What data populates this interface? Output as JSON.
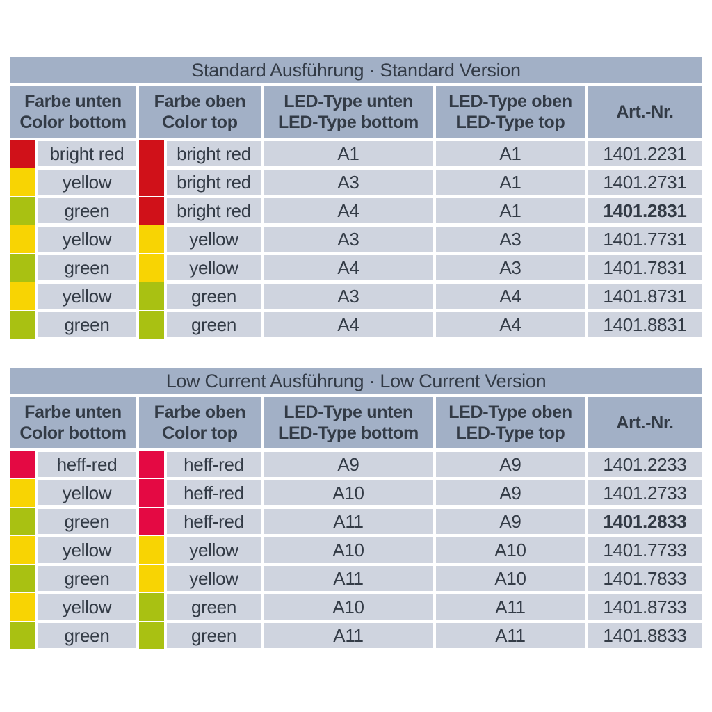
{
  "colors": {
    "background": "#ffffff",
    "band_header": "#a2b0c6",
    "band_row": "#cfd4df",
    "text": "#333b46",
    "swatches": {
      "bright-red": "#d01119",
      "yellow": "#f8d403",
      "green": "#a9c112",
      "heff-red": "#e40943"
    }
  },
  "tables": [
    {
      "title": "Standard Ausführung · Standard Version",
      "columns": [
        {
          "line1": "Farbe unten",
          "line2": "Color bottom"
        },
        {
          "line1": "Farbe oben",
          "line2": "Color top"
        },
        {
          "line1": "LED-Type unten",
          "line2": "LED-Type bottom"
        },
        {
          "line1": "LED-Type oben",
          "line2": "LED-Type top"
        },
        {
          "line1": "Art.-Nr.",
          "line2": ""
        }
      ],
      "rows": [
        {
          "color_bottom": "bright red",
          "swatch_bottom": "bright-red",
          "color_top": "bright red",
          "swatch_top": "bright-red",
          "led_bottom": "A1",
          "led_top": "A1",
          "art_nr": "1401.2231",
          "art_nr_bold": false
        },
        {
          "color_bottom": "yellow",
          "swatch_bottom": "yellow",
          "color_top": "bright red",
          "swatch_top": "bright-red",
          "led_bottom": "A3",
          "led_top": "A1",
          "art_nr": "1401.2731",
          "art_nr_bold": false
        },
        {
          "color_bottom": "green",
          "swatch_bottom": "green",
          "color_top": "bright red",
          "swatch_top": "bright-red",
          "led_bottom": "A4",
          "led_top": "A1",
          "art_nr": "1401.2831",
          "art_nr_bold": true
        },
        {
          "color_bottom": "yellow",
          "swatch_bottom": "yellow",
          "color_top": "yellow",
          "swatch_top": "yellow",
          "led_bottom": "A3",
          "led_top": "A3",
          "art_nr": "1401.7731",
          "art_nr_bold": false
        },
        {
          "color_bottom": "green",
          "swatch_bottom": "green",
          "color_top": "yellow",
          "swatch_top": "yellow",
          "led_bottom": "A4",
          "led_top": "A3",
          "art_nr": "1401.7831",
          "art_nr_bold": false
        },
        {
          "color_bottom": "yellow",
          "swatch_bottom": "yellow",
          "color_top": "green",
          "swatch_top": "green",
          "led_bottom": "A3",
          "led_top": "A4",
          "art_nr": "1401.8731",
          "art_nr_bold": false
        },
        {
          "color_bottom": "green",
          "swatch_bottom": "green",
          "color_top": "green",
          "swatch_top": "green",
          "led_bottom": "A4",
          "led_top": "A4",
          "art_nr": "1401.8831",
          "art_nr_bold": false
        }
      ]
    },
    {
      "title": "Low Current Ausführung · Low Current Version",
      "columns": [
        {
          "line1": "Farbe unten",
          "line2": "Color bottom"
        },
        {
          "line1": "Farbe oben",
          "line2": "Color top"
        },
        {
          "line1": "LED-Type unten",
          "line2": "LED-Type bottom"
        },
        {
          "line1": "LED-Type oben",
          "line2": "LED-Type top"
        },
        {
          "line1": "Art.-Nr.",
          "line2": ""
        }
      ],
      "rows": [
        {
          "color_bottom": "heff-red",
          "swatch_bottom": "heff-red",
          "color_top": "heff-red",
          "swatch_top": "heff-red",
          "led_bottom": "A9",
          "led_top": "A9",
          "art_nr": "1401.2233",
          "art_nr_bold": false
        },
        {
          "color_bottom": "yellow",
          "swatch_bottom": "yellow",
          "color_top": "heff-red",
          "swatch_top": "heff-red",
          "led_bottom": "A10",
          "led_top": "A9",
          "art_nr": "1401.2733",
          "art_nr_bold": false
        },
        {
          "color_bottom": "green",
          "swatch_bottom": "green",
          "color_top": "heff-red",
          "swatch_top": "heff-red",
          "led_bottom": "A11",
          "led_top": "A9",
          "art_nr": "1401.2833",
          "art_nr_bold": true
        },
        {
          "color_bottom": "yellow",
          "swatch_bottom": "yellow",
          "color_top": "yellow",
          "swatch_top": "yellow",
          "led_bottom": "A10",
          "led_top": "A10",
          "art_nr": "1401.7733",
          "art_nr_bold": false
        },
        {
          "color_bottom": "green",
          "swatch_bottom": "green",
          "color_top": "yellow",
          "swatch_top": "yellow",
          "led_bottom": "A11",
          "led_top": "A10",
          "art_nr": "1401.7833",
          "art_nr_bold": false
        },
        {
          "color_bottom": "yellow",
          "swatch_bottom": "yellow",
          "color_top": "green",
          "swatch_top": "green",
          "led_bottom": "A10",
          "led_top": "A11",
          "art_nr": "1401.8733",
          "art_nr_bold": false
        },
        {
          "color_bottom": "green",
          "swatch_bottom": "green",
          "color_top": "green",
          "swatch_top": "green",
          "led_bottom": "A11",
          "led_top": "A11",
          "art_nr": "1401.8833",
          "art_nr_bold": false
        }
      ]
    }
  ]
}
